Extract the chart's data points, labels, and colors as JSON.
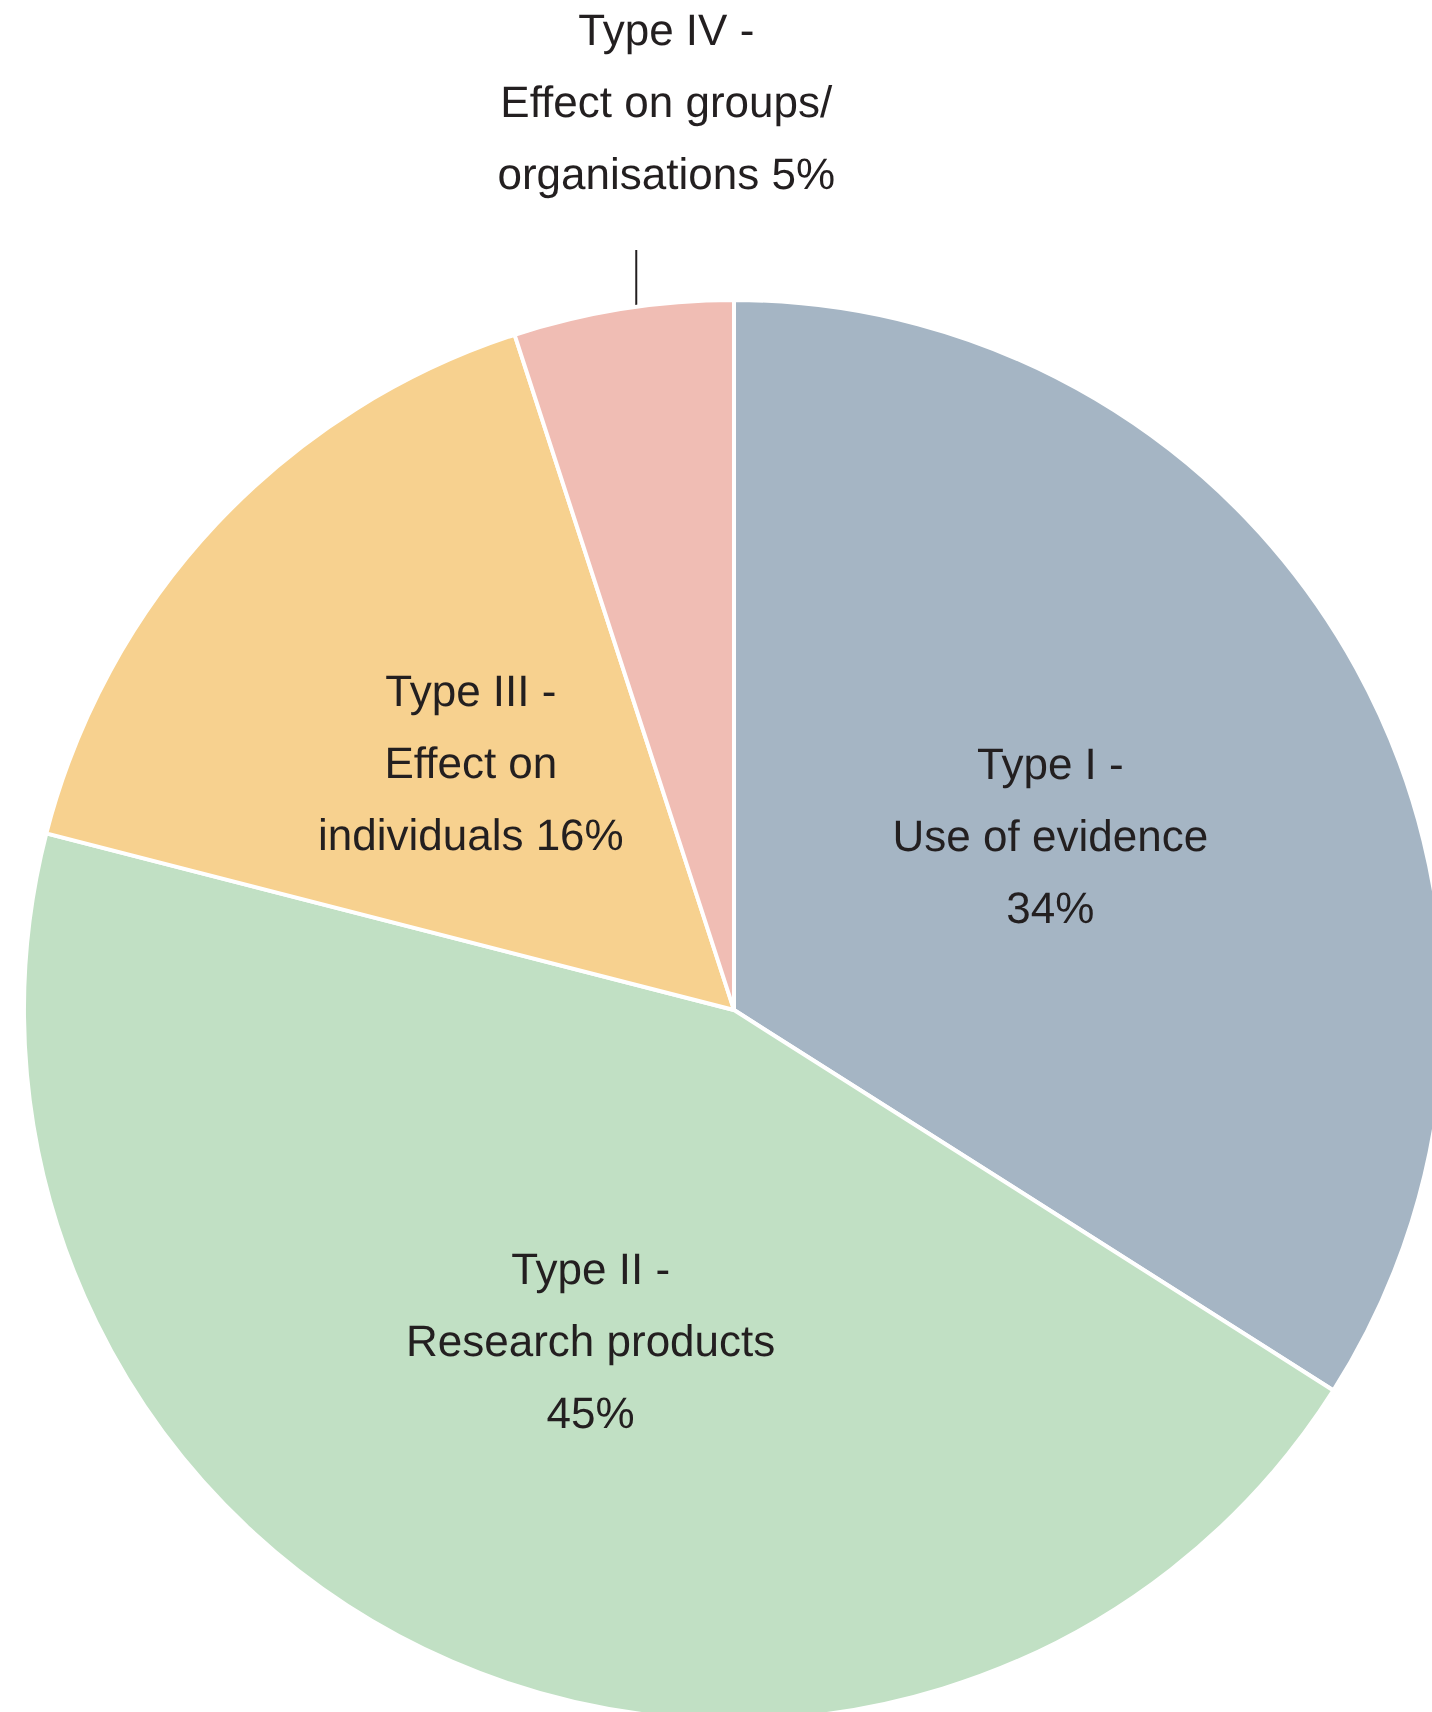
{
  "chart_data": {
    "type": "pie",
    "categories": [
      "Type I -\nUse of evidence",
      "Type II -\nResearch products",
      "Type III -\nEffect on\nindividuals",
      "Type IV -\nEffect on groups/\norganisations"
    ],
    "values": [
      34,
      45,
      16,
      5
    ],
    "colors": [
      "#a5b5c4",
      "#c1e0c4",
      "#f7d18f",
      "#f0bdb4"
    ],
    "value_labels": [
      "34%",
      "45%",
      "16%",
      "5%"
    ],
    "legend": false
  }
}
